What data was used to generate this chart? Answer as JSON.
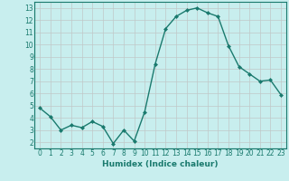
{
  "x": [
    0,
    1,
    2,
    3,
    4,
    5,
    6,
    7,
    8,
    9,
    10,
    11,
    12,
    13,
    14,
    15,
    16,
    17,
    18,
    19,
    20,
    21,
    22,
    23
  ],
  "y": [
    4.8,
    4.1,
    3.0,
    3.4,
    3.2,
    3.7,
    3.3,
    1.9,
    3.0,
    2.1,
    4.5,
    8.4,
    11.3,
    12.3,
    12.8,
    13.0,
    12.6,
    12.3,
    9.9,
    8.2,
    7.6,
    7.0,
    7.1,
    5.9
  ],
  "line_color": "#1a7a6e",
  "marker": "D",
  "marker_size": 2,
  "bg_color": "#c8eeee",
  "grid_color": "#c0c8c8",
  "xlabel": "Humidex (Indice chaleur)",
  "xlim": [
    -0.5,
    23.5
  ],
  "ylim": [
    1.5,
    13.5
  ],
  "yticks": [
    2,
    3,
    4,
    5,
    6,
    7,
    8,
    9,
    10,
    11,
    12,
    13
  ],
  "xticks": [
    0,
    1,
    2,
    3,
    4,
    5,
    6,
    7,
    8,
    9,
    10,
    11,
    12,
    13,
    14,
    15,
    16,
    17,
    18,
    19,
    20,
    21,
    22,
    23
  ],
  "tick_fontsize": 5.5,
  "xlabel_fontsize": 6.5
}
